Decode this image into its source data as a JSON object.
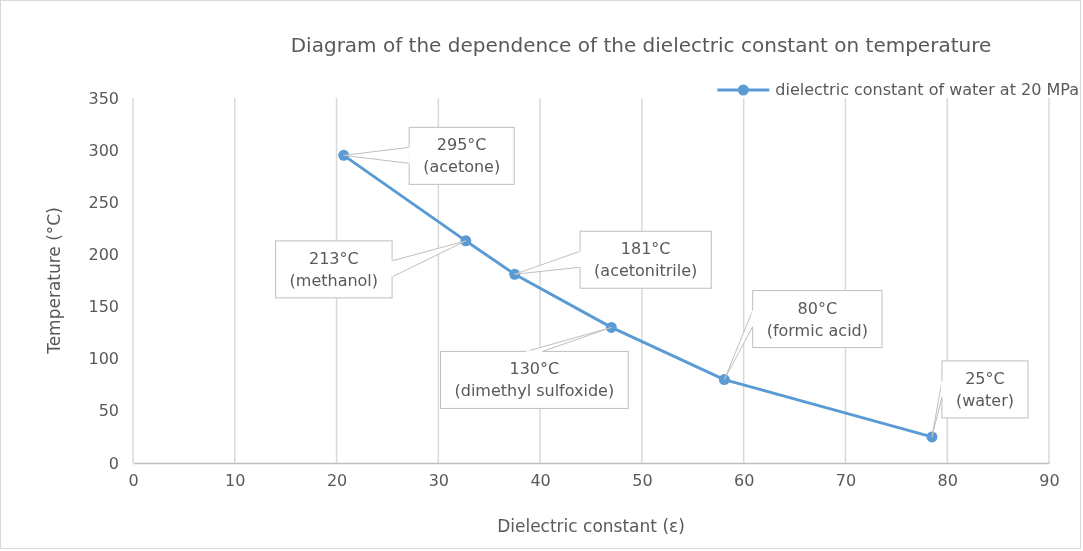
{
  "chart_data": {
    "type": "line",
    "title": "Diagram of the dependence of the dielectric constant on temperature",
    "xlabel": "Dielectric constant (ε)",
    "ylabel": "Temperature (°C)",
    "x": [
      20.7,
      32.7,
      37.5,
      47,
      58.1,
      78.5
    ],
    "series": [
      {
        "name": "dielectric constant of water at 20 MPa",
        "color": "#5b9bd5",
        "values": [
          295,
          213,
          181,
          130,
          80,
          25
        ]
      }
    ],
    "xlim": [
      0,
      90
    ],
    "xticks": [
      0,
      10,
      20,
      30,
      40,
      50,
      60,
      70,
      80,
      90
    ],
    "ylim": [
      0,
      350
    ],
    "yticks": [
      0,
      50,
      100,
      150,
      200,
      250,
      300,
      350
    ],
    "grid": "x",
    "legend": "top right",
    "marker": "circle",
    "line_style": "solid",
    "annotations": [
      {
        "text": "295°C\n(acetone)",
        "x": 20.7,
        "y": 295
      },
      {
        "text": "213°C\n(methanol)",
        "x": 32.7,
        "y": 213
      },
      {
        "text": "181°C\n(acetonitrile)",
        "x": 37.5,
        "y": 181
      },
      {
        "text": "130°C\n(dimethyl sulfoxide)",
        "x": 47,
        "y": 130
      },
      {
        "text": "80°C\n(formic acid)",
        "x": 58.1,
        "y": 80
      },
      {
        "text": "25°C\n(water)",
        "x": 78.5,
        "y": 25
      }
    ]
  }
}
